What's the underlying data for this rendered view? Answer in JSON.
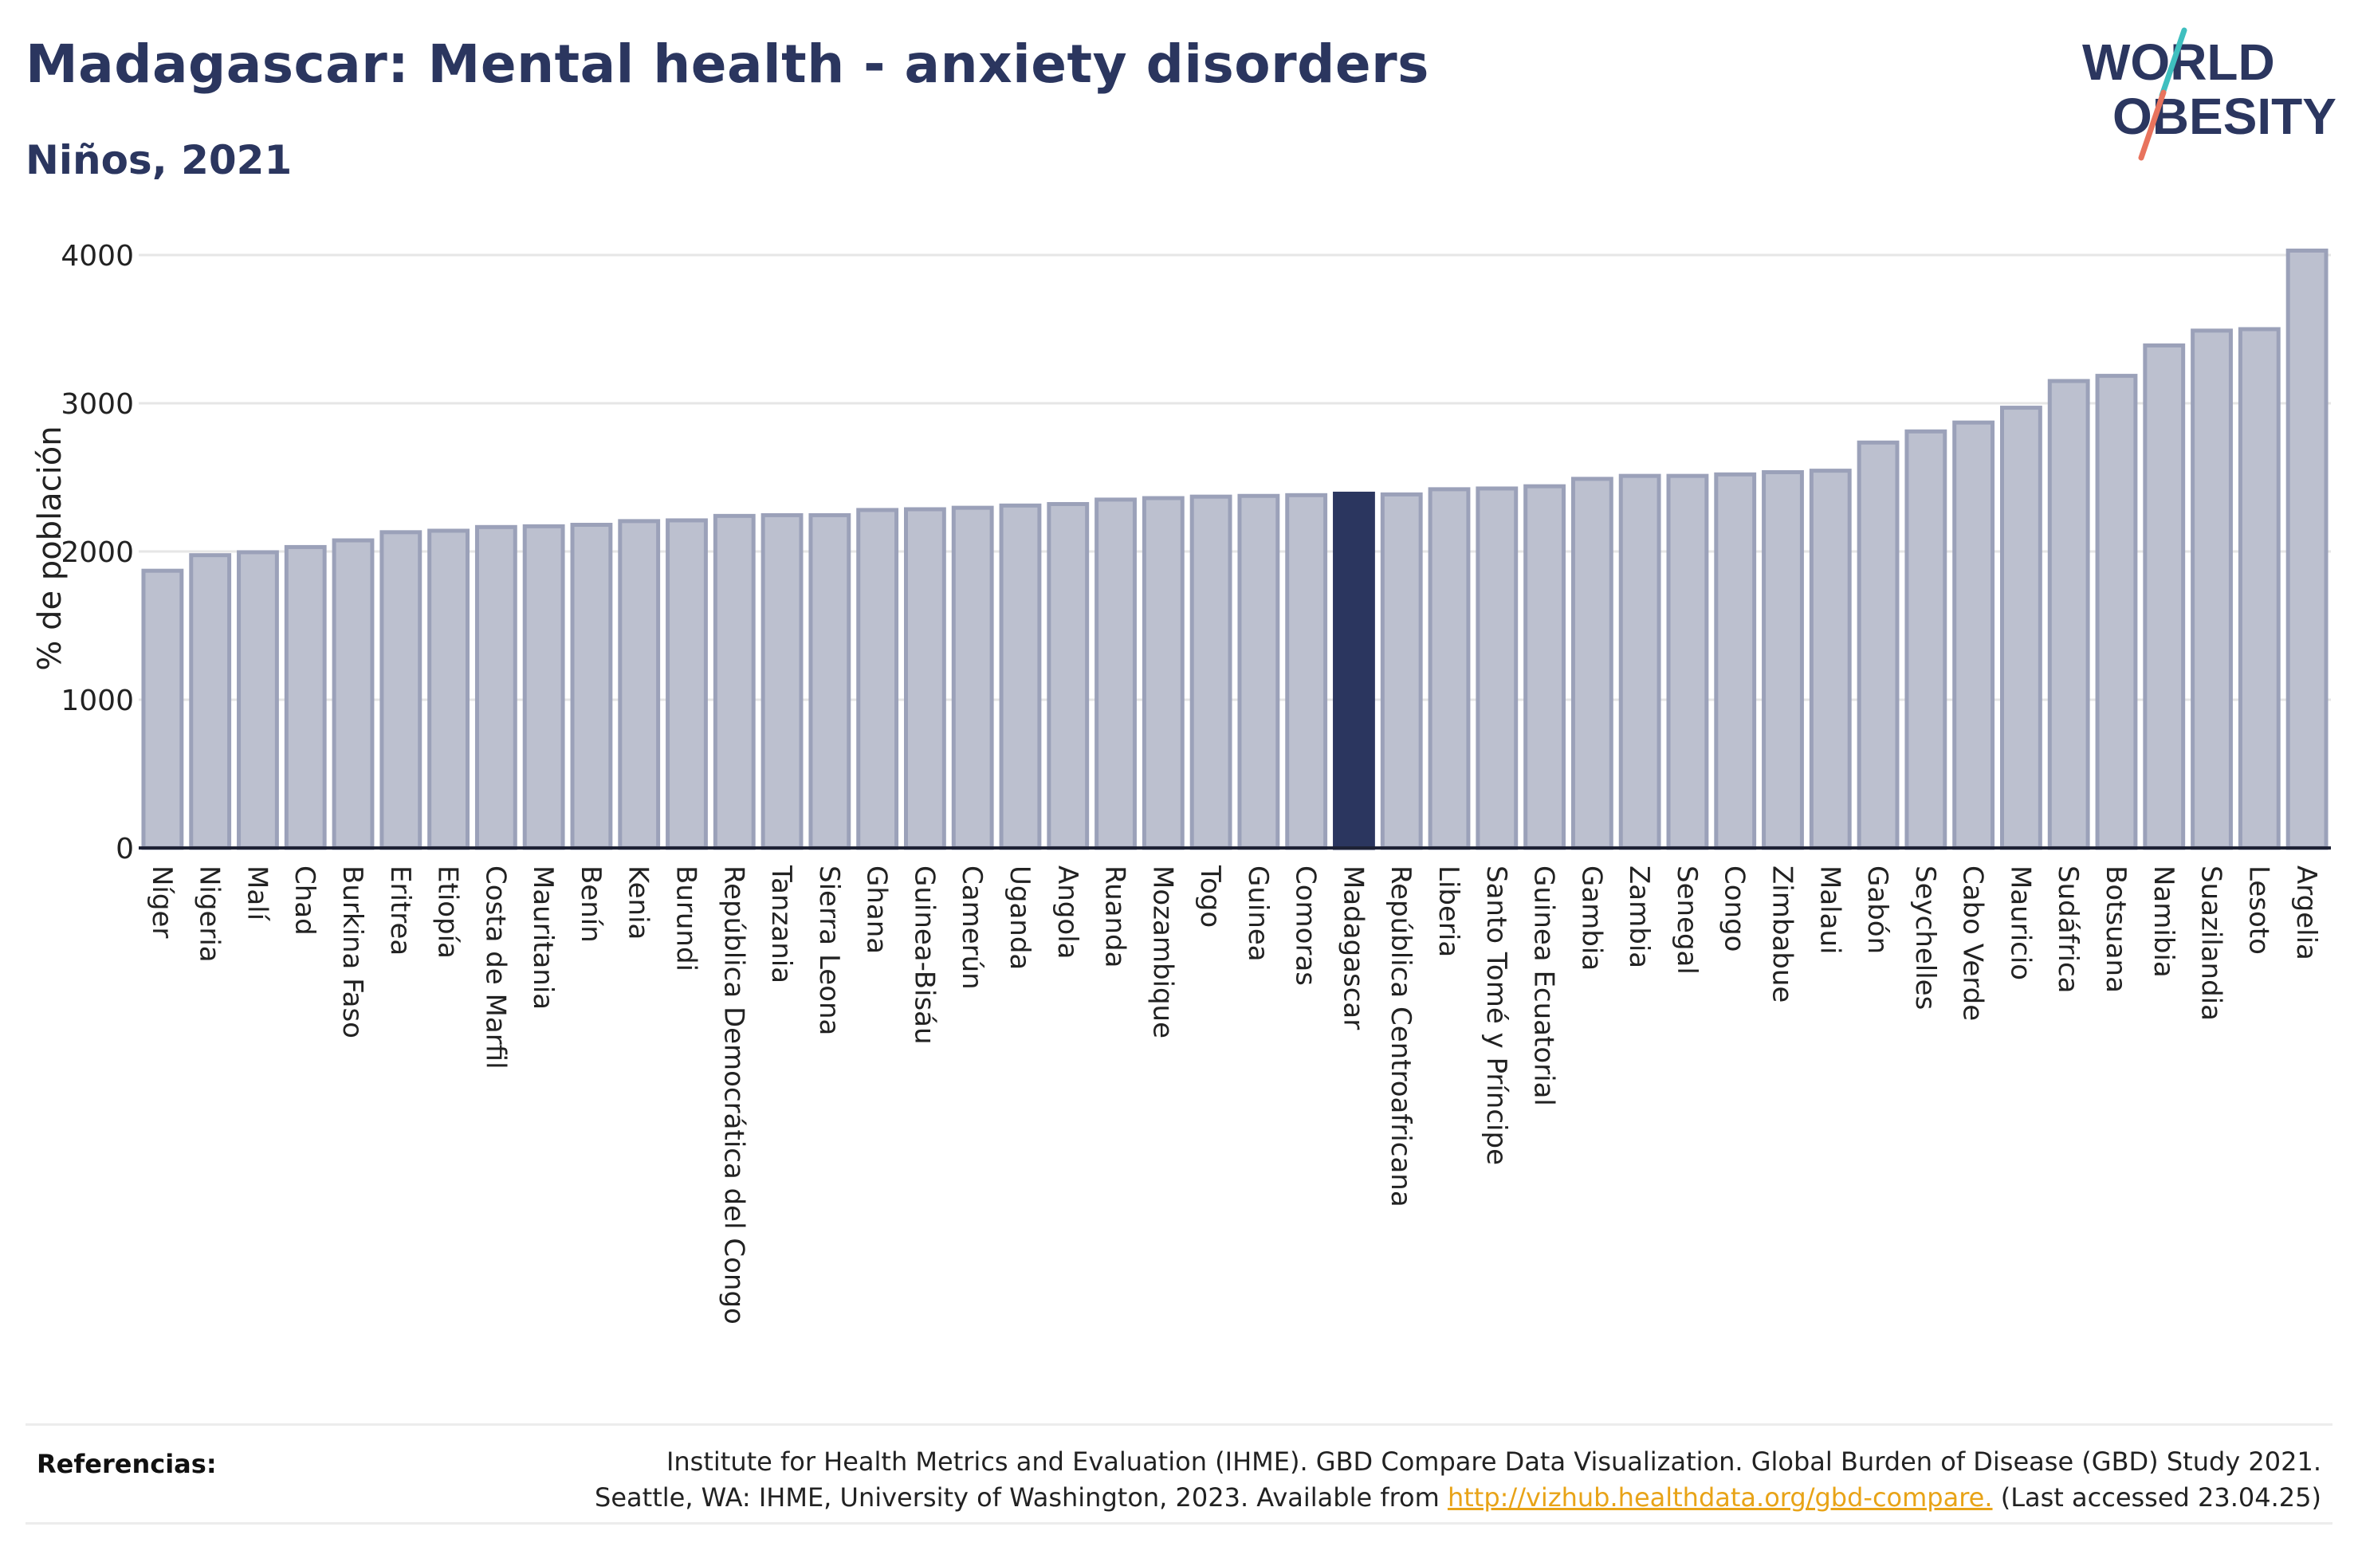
{
  "header": {
    "title": "Madagascar: Mental health - anxiety disorders",
    "subtitle": "Niños, 2021"
  },
  "logo": {
    "line1": "WORLD",
    "line2": "OBESITY"
  },
  "colors": {
    "bar": "#bcc0cf",
    "bar_stroke": "#9ba1b9",
    "highlight": "#2b365f",
    "grid": "#e6e6e6",
    "title": "#2b365f",
    "link": "#e8a317"
  },
  "chart_data": {
    "type": "bar",
    "ylabel": "% de población",
    "ylim": [
      0,
      4100
    ],
    "yticks": [
      0,
      1000,
      2000,
      3000,
      4000
    ],
    "highlight": "Madagascar",
    "grid": true,
    "categories": [
      "Níger",
      "Nigeria",
      "Malí",
      "Chad",
      "Burkina Faso",
      "Eritrea",
      "Etiopía",
      "Costa de Marfil",
      "Mauritania",
      "Benín",
      "Kenia",
      "Burundi",
      "República Democrática del Congo",
      "Tanzania",
      "Sierra Leona",
      "Ghana",
      "Guinea-Bisáu",
      "Camerún",
      "Uganda",
      "Angola",
      "Ruanda",
      "Mozambique",
      "Togo",
      "Guinea",
      "Comoras",
      "Madagascar",
      "República Centroafricana",
      "Liberia",
      "Santo Tomé y Príncipe",
      "Guinea Ecuatorial",
      "Gambia",
      "Zambia",
      "Senegal",
      "Congo",
      "Zimbabue",
      "Malaui",
      "Gabón",
      "Seychelles",
      "Cabo Verde",
      "Mauricio",
      "Sudáfrica",
      "Botsuana",
      "Namibia",
      "Suazilandia",
      "Lesoto",
      "Argelia"
    ],
    "values": [
      1870,
      1975,
      1995,
      2030,
      2075,
      2130,
      2140,
      2165,
      2170,
      2180,
      2205,
      2210,
      2240,
      2245,
      2245,
      2280,
      2285,
      2295,
      2310,
      2320,
      2350,
      2360,
      2370,
      2375,
      2380,
      2390,
      2385,
      2420,
      2425,
      2440,
      2490,
      2510,
      2510,
      2520,
      2535,
      2545,
      2735,
      2810,
      2870,
      2970,
      3150,
      3185,
      3390,
      3490,
      3500,
      4030
    ]
  },
  "footer": {
    "ref_label": "Referencias:",
    "ref_line1": "Institute for Health Metrics and Evaluation (IHME). GBD Compare Data Visualization. Global Burden of Disease (GBD) Study 2021.",
    "ref_line2_pre": "Seattle, WA: IHME, University of Washington, 2023. Available from ",
    "ref_link": "http://vizhub.healthdata.org/gbd-compare.",
    "ref_line2_post": " (Last accessed 23.04.25)"
  }
}
